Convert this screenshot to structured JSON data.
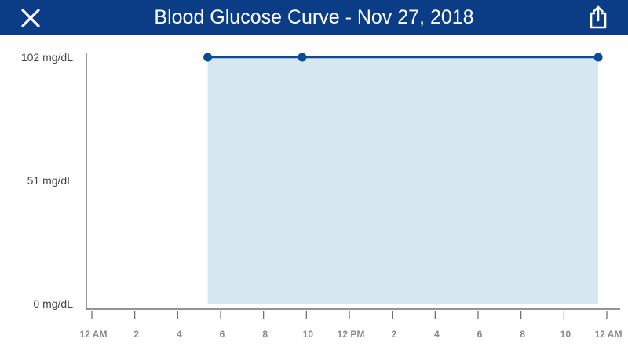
{
  "header": {
    "title": "Blood Glucose Curve - Nov 27, 2018",
    "close_icon": "close-icon",
    "share_icon": "share-icon",
    "background_color": "#0b3d86"
  },
  "chart_data": {
    "type": "area",
    "title": "",
    "xlabel": "",
    "ylabel": "",
    "x_ticks": [
      "12 AM",
      "2",
      "4",
      "6",
      "8",
      "10",
      "12 PM",
      "2",
      "4",
      "6",
      "8",
      "10",
      "12 AM"
    ],
    "y_ticks": [
      "0 mg/dL",
      "51 mg/dL",
      "102 mg/dL"
    ],
    "y_tick_values": [
      0,
      51,
      102
    ],
    "xlim_hours": [
      0,
      24
    ],
    "ylim": [
      0,
      102
    ],
    "series": [
      {
        "x_hours": [
          5.4,
          9.8,
          23.6
        ],
        "values": [
          102,
          102,
          102
        ]
      }
    ],
    "line_color": "#0b4a96",
    "fill_color": "#d6e7f2",
    "grid": false
  }
}
